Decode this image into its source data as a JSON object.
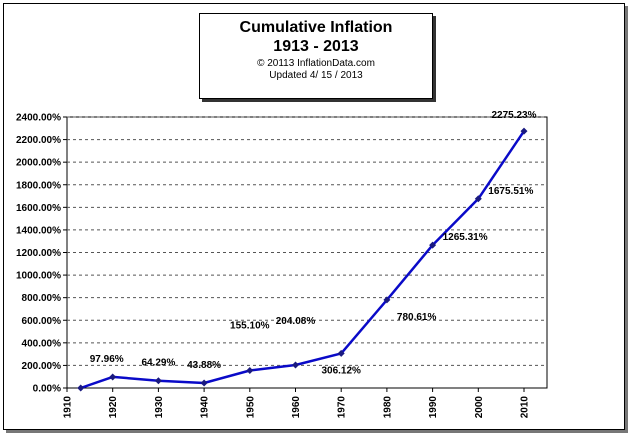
{
  "title_box": {
    "line1": "Cumulative Inflation",
    "line2": "1913 - 2013",
    "line3": "© 20113 InflationData.com",
    "line4": "Updated  4/ 15 / 2013"
  },
  "colors": {
    "series": "#0a0ac8",
    "grid": "#555555",
    "frame": "#000000"
  },
  "chart_data": {
    "type": "line",
    "title": "Cumulative Inflation 1913 - 2013",
    "x": [
      1913,
      1920,
      1930,
      1940,
      1950,
      1960,
      1970,
      1980,
      1990,
      2000,
      2010
    ],
    "series": [
      {
        "values": [
          0.0,
          97.96,
          64.29,
          43.88,
          155.1,
          204.08,
          306.12,
          780.61,
          1265.31,
          1675.51,
          2275.23
        ]
      }
    ],
    "data_labels": [
      "",
      "97.96%",
      "64.29%",
      "43.88%",
      "155.10%",
      "204.08%",
      "306.12%",
      "780.61%",
      "1265.31%",
      "1675.51%",
      "2275.23%"
    ],
    "xticks": [
      "1910",
      "1920",
      "1930",
      "1940",
      "1950",
      "1960",
      "1970",
      "1980",
      "1990",
      "2000",
      "2010"
    ],
    "yticks": [
      "0.00%",
      "200.00%",
      "400.00%",
      "600.00%",
      "800.00%",
      "1000.00%",
      "1200.00%",
      "1400.00%",
      "1600.00%",
      "1800.00%",
      "2000.00%",
      "2200.00%",
      "2400.00%"
    ],
    "xlim": [
      1910,
      2010
    ],
    "ylim": [
      0,
      2400
    ],
    "grid": true
  }
}
